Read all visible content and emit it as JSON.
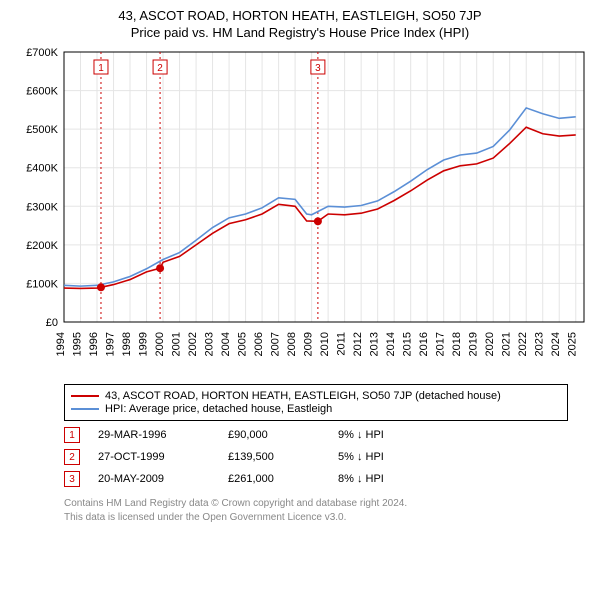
{
  "title_main": "43, ASCOT ROAD, HORTON HEATH, EASTLEIGH, SO50 7JP",
  "title_sub": "Price paid vs. HM Land Registry's House Price Index (HPI)",
  "chart": {
    "type": "line",
    "background_color": "#ffffff",
    "grid_color": "#e5e5e5",
    "axis_color": "#000000",
    "x_years": [
      1994,
      1995,
      1996,
      1997,
      1998,
      1999,
      2000,
      2001,
      2002,
      2003,
      2004,
      2005,
      2006,
      2007,
      2008,
      2009,
      2010,
      2011,
      2012,
      2013,
      2014,
      2015,
      2016,
      2017,
      2018,
      2019,
      2020,
      2021,
      2022,
      2023,
      2024,
      2025
    ],
    "xlim": [
      1994,
      2025.5
    ],
    "ylim": [
      0,
      700000
    ],
    "ytick_step": 100000,
    "ytick_labels": [
      "£0",
      "£100K",
      "£200K",
      "£300K",
      "£400K",
      "£500K",
      "£600K",
      "£700K"
    ],
    "line_width": 1.6,
    "markers": [
      {
        "n": "1",
        "year": 1996.24,
        "price": 90000,
        "color": "#cc0000"
      },
      {
        "n": "2",
        "year": 1999.82,
        "price": 139500,
        "color": "#cc0000"
      },
      {
        "n": "3",
        "year": 2009.38,
        "price": 261000,
        "color": "#cc0000"
      }
    ],
    "marker_box_size": 14,
    "marker_dot_radius": 4,
    "marker_line_dash": "2,3",
    "series_red": {
      "color": "#cc0000",
      "points": [
        [
          1994,
          88000
        ],
        [
          1995,
          87000
        ],
        [
          1996,
          88000
        ],
        [
          1996.24,
          90000
        ],
        [
          1997,
          97000
        ],
        [
          1998,
          110000
        ],
        [
          1999,
          130000
        ],
        [
          1999.82,
          139500
        ],
        [
          2000,
          155000
        ],
        [
          2001,
          170000
        ],
        [
          2002,
          200000
        ],
        [
          2003,
          230000
        ],
        [
          2004,
          255000
        ],
        [
          2005,
          265000
        ],
        [
          2006,
          280000
        ],
        [
          2007,
          305000
        ],
        [
          2008,
          300000
        ],
        [
          2008.7,
          262000
        ],
        [
          2009.38,
          261000
        ],
        [
          2010,
          280000
        ],
        [
          2011,
          278000
        ],
        [
          2012,
          282000
        ],
        [
          2013,
          293000
        ],
        [
          2014,
          315000
        ],
        [
          2015,
          340000
        ],
        [
          2016,
          368000
        ],
        [
          2017,
          392000
        ],
        [
          2018,
          405000
        ],
        [
          2019,
          410000
        ],
        [
          2020,
          425000
        ],
        [
          2021,
          463000
        ],
        [
          2022,
          505000
        ],
        [
          2023,
          488000
        ],
        [
          2024,
          482000
        ],
        [
          2025,
          485000
        ]
      ]
    },
    "series_blue": {
      "color": "#5b8fd6",
      "points": [
        [
          1994,
          95000
        ],
        [
          1995,
          93000
        ],
        [
          1996,
          95000
        ],
        [
          1997,
          104000
        ],
        [
          1998,
          118000
        ],
        [
          1999,
          138000
        ],
        [
          2000,
          162000
        ],
        [
          2001,
          180000
        ],
        [
          2002,
          212000
        ],
        [
          2003,
          245000
        ],
        [
          2004,
          270000
        ],
        [
          2005,
          280000
        ],
        [
          2006,
          296000
        ],
        [
          2007,
          322000
        ],
        [
          2008,
          318000
        ],
        [
          2008.7,
          280000
        ],
        [
          2009,
          278000
        ],
        [
          2010,
          300000
        ],
        [
          2011,
          298000
        ],
        [
          2012,
          302000
        ],
        [
          2013,
          314000
        ],
        [
          2014,
          338000
        ],
        [
          2015,
          365000
        ],
        [
          2016,
          395000
        ],
        [
          2017,
          420000
        ],
        [
          2018,
          433000
        ],
        [
          2019,
          438000
        ],
        [
          2020,
          455000
        ],
        [
          2021,
          498000
        ],
        [
          2022,
          555000
        ],
        [
          2023,
          540000
        ],
        [
          2024,
          528000
        ],
        [
          2025,
          532000
        ]
      ]
    }
  },
  "legend": {
    "red_label": "43, ASCOT ROAD, HORTON HEATH, EASTLEIGH, SO50 7JP (detached house)",
    "blue_label": "HPI: Average price, detached house, Eastleigh",
    "red_color": "#cc0000",
    "blue_color": "#5b8fd6"
  },
  "events": [
    {
      "n": "1",
      "date": "29-MAR-1996",
      "price": "£90,000",
      "pct": "9% ↓ HPI",
      "color": "#cc0000"
    },
    {
      "n": "2",
      "date": "27-OCT-1999",
      "price": "£139,500",
      "pct": "5% ↓ HPI",
      "color": "#cc0000"
    },
    {
      "n": "3",
      "date": "20-MAY-2009",
      "price": "£261,000",
      "pct": "8% ↓ HPI",
      "color": "#cc0000"
    }
  ],
  "footer_line1": "Contains HM Land Registry data © Crown copyright and database right 2024.",
  "footer_line2": "This data is licensed under the Open Government Licence v3.0."
}
